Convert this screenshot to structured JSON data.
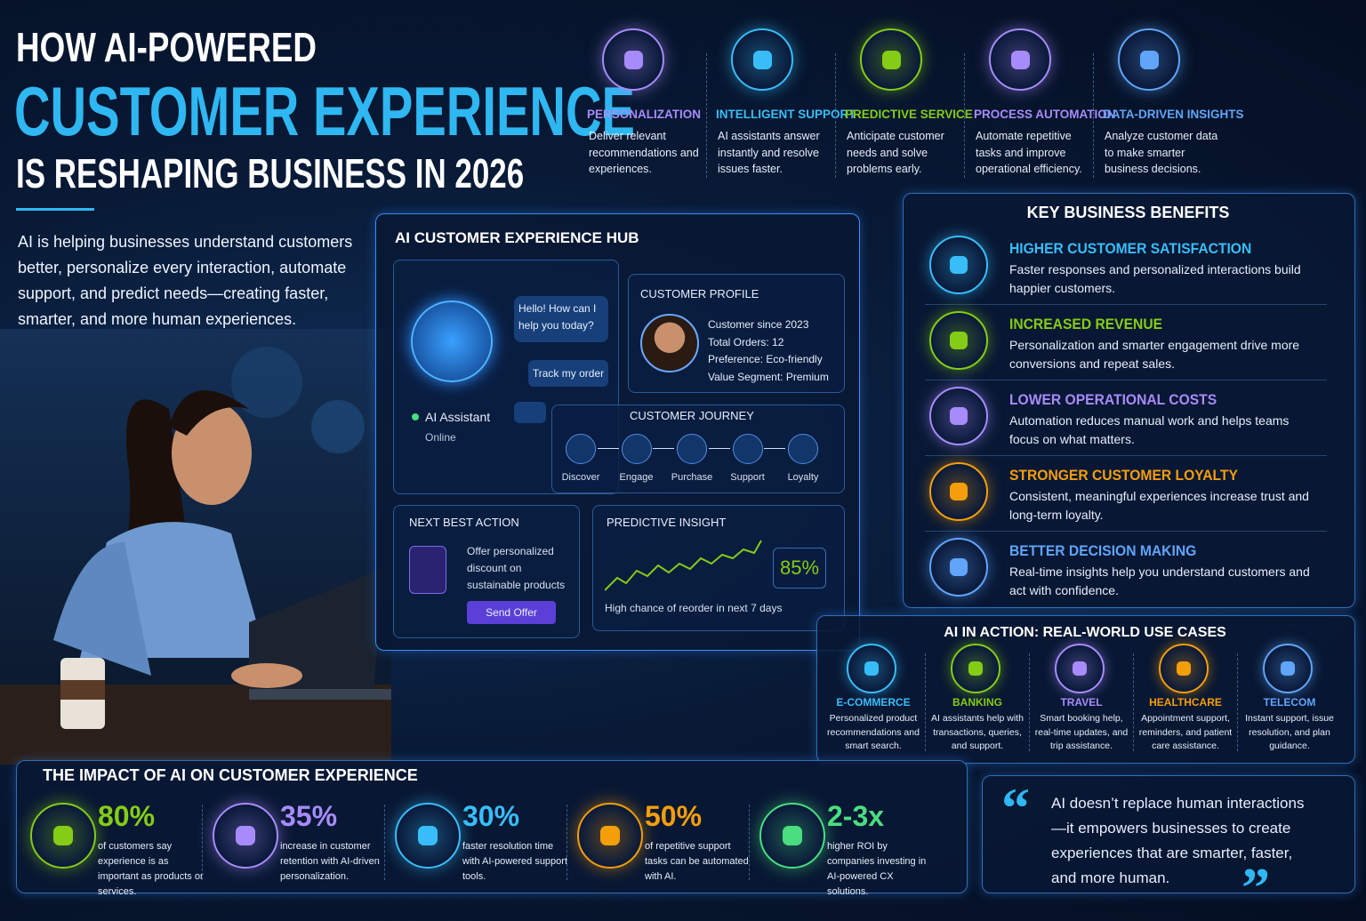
{
  "header": {
    "title_line1": "HOW AI-POWERED",
    "title_line2": "CUSTOMER EXPERIENCE",
    "title_line3": "IS RESHAPING BUSINESS IN 2026",
    "intro": "AI is helping businesses understand customers better, personalize every interaction, automate support, and predict needs—creating faster, smarter, and more human experiences."
  },
  "features": [
    {
      "title": "PERSONALIZATION",
      "text": "Deliver relevant recommendations and experiences."
    },
    {
      "title": "INTELLIGENT SUPPORT",
      "text": "AI assistants answer instantly and resolve issues faster."
    },
    {
      "title": "PREDICTIVE SERVICE",
      "text": "Anticipate customer needs and solve problems early."
    },
    {
      "title": "PROCESS AUTOMATION",
      "text": "Automate repetitive tasks and improve operational efficiency."
    },
    {
      "title": "DATA-DRIVEN INSIGHTS",
      "text": "Analyze customer data to make smarter business decisions."
    }
  ],
  "hub": {
    "title": "AI CUSTOMER EXPERIENCE HUB",
    "chat_message": "Hello! How can I help you today?",
    "quick_reply": "Track my order",
    "assistant_name": "AI Assistant",
    "assistant_status": "Online",
    "profile": {
      "title": "CUSTOMER PROFILE",
      "lines": [
        "Customer since 2023",
        "Total Orders: 12",
        "Preference: Eco-friendly",
        "Value Segment: Premium"
      ]
    },
    "journey": {
      "title": "CUSTOMER JOURNEY",
      "steps": [
        "Discover",
        "Engage",
        "Purchase",
        "Support",
        "Loyalty"
      ]
    },
    "next_best_action": {
      "title": "NEXT BEST ACTION",
      "text": "Offer personalized discount on sustainable products",
      "button": "Send Offer"
    },
    "predictive_insight": {
      "title": "PREDICTIVE INSIGHT",
      "value": "85%",
      "caption": "High chance of reorder in next 7 days"
    }
  },
  "benefits": {
    "title": "KEY BUSINESS BENEFITS",
    "items": [
      {
        "title": "HIGHER CUSTOMER SATISFACTION",
        "text": "Faster responses and personalized interactions build happier customers."
      },
      {
        "title": "INCREASED REVENUE",
        "text": "Personalization and smarter engagement drive more conversions and repeat sales."
      },
      {
        "title": "LOWER OPERATIONAL COSTS",
        "text": "Automation reduces manual work and helps teams focus on what matters."
      },
      {
        "title": "STRONGER CUSTOMER LOYALTY",
        "text": "Consistent, meaningful experiences increase trust and long-term loyalty."
      },
      {
        "title": "BETTER DECISION MAKING",
        "text": "Real-time insights help you understand customers and act with confidence."
      }
    ]
  },
  "use_cases": {
    "title": "AI IN ACTION: REAL-WORLD USE CASES",
    "items": [
      {
        "title": "E-COMMERCE",
        "text": "Personalized product recommendations and smart search."
      },
      {
        "title": "BANKING",
        "text": "AI assistants help with transactions, queries, and support."
      },
      {
        "title": "TRAVEL",
        "text": "Smart booking help, real-time updates, and trip assistance."
      },
      {
        "title": "HEALTHCARE",
        "text": "Appointment support, reminders, and patient care assistance."
      },
      {
        "title": "TELECOM",
        "text": "Instant support, issue resolution, and plan guidance."
      }
    ]
  },
  "impact": {
    "title": "THE IMPACT OF AI ON CUSTOMER EXPERIENCE",
    "stats": [
      {
        "value": "80%",
        "text": "of customers say experience is as important as products or services."
      },
      {
        "value": "35%",
        "text": "increase in customer retention with AI-driven personalization."
      },
      {
        "value": "30%",
        "text": "faster resolution time with AI-powered support tools."
      },
      {
        "value": "50%",
        "text": "of repetitive support tasks can be automated with AI."
      },
      {
        "value": "2-3x",
        "text": "higher ROI by companies investing in AI-powered CX solutions."
      }
    ]
  },
  "quote": {
    "open": "“",
    "text": "AI doesn’t replace human interactions—it empowers businesses to create experiences that are smarter, faster, and more human.",
    "close": "”"
  }
}
